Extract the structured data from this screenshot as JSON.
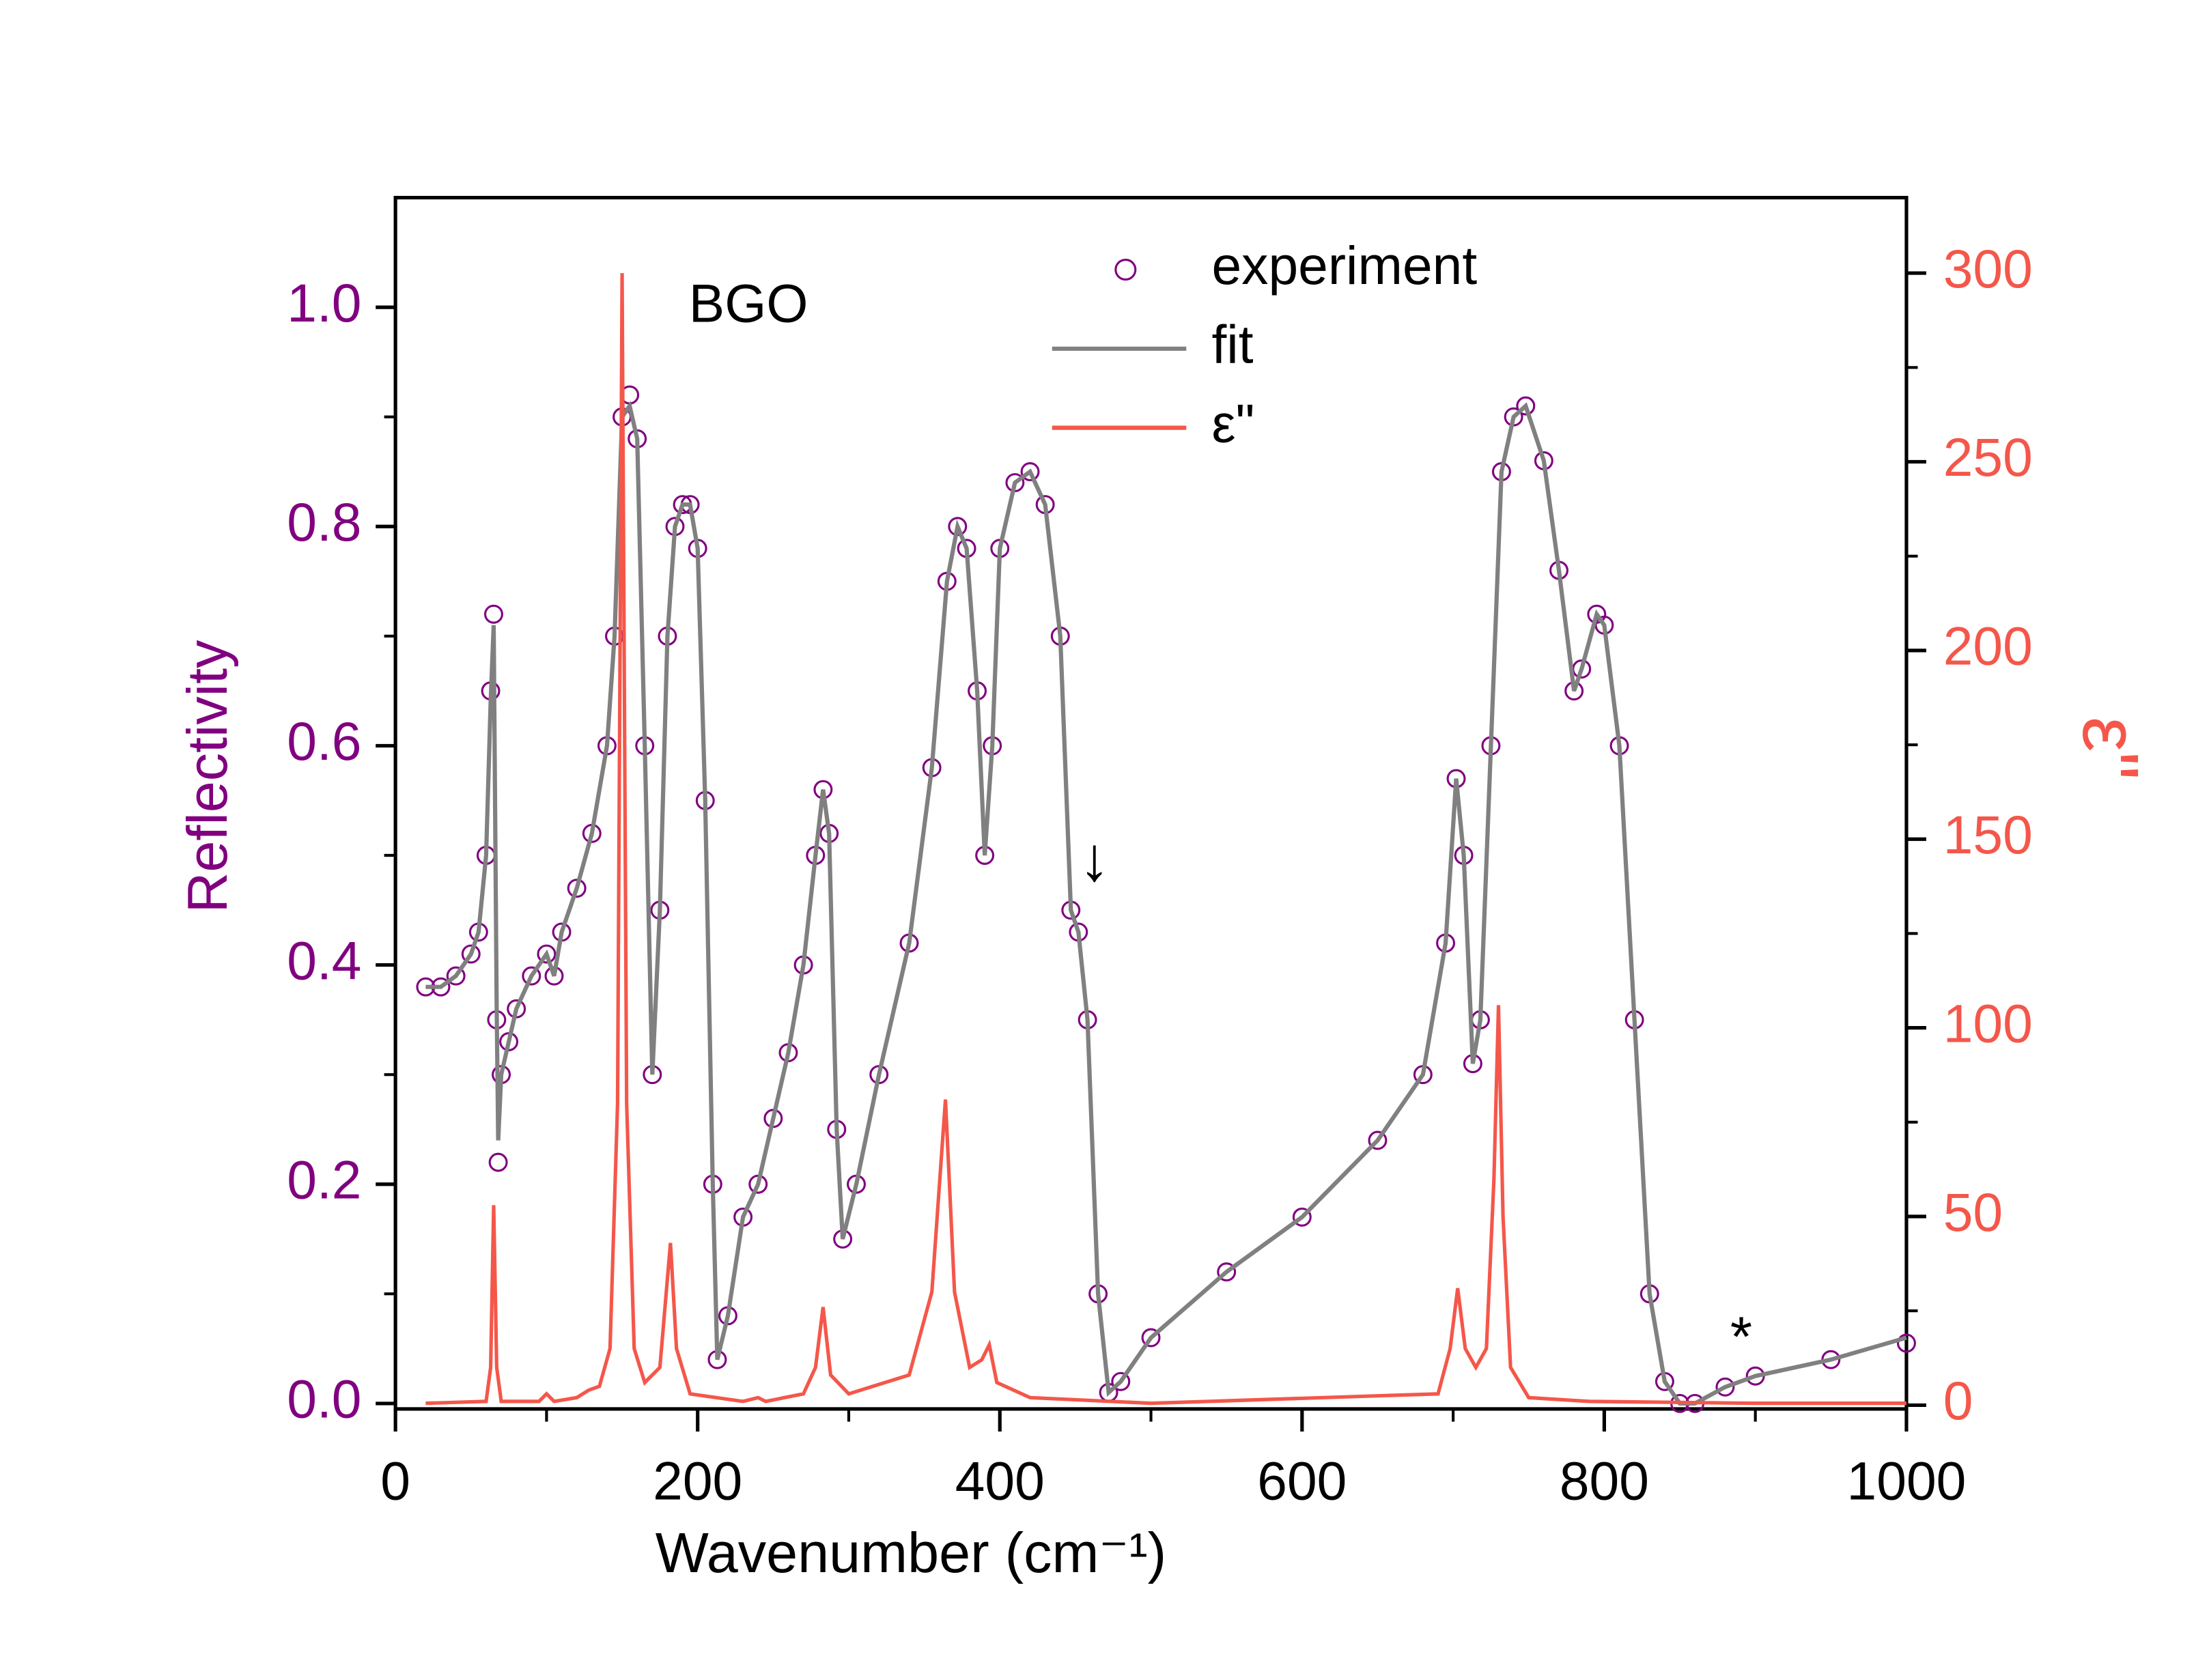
{
  "chart_data": {
    "type": "line",
    "x_label": "Wavenumber (cm⁻¹)",
    "y_label": "Reflectivity",
    "y2_label": "ε\"",
    "annotations": [
      "BGO",
      "↓",
      "*"
    ],
    "xlim": [
      0,
      1000
    ],
    "xticks": [
      0,
      200,
      400,
      600,
      800,
      1000
    ],
    "ylim": [
      -0.005,
      1.1
    ],
    "yticks": [
      {
        "value": 0,
        "label": "0.0"
      },
      0.2,
      0.4,
      0.6,
      0.8,
      {
        "value": 1,
        "label": "1.0"
      }
    ],
    "y2lim": [
      -1,
      320
    ],
    "y2ticks": [
      0,
      50,
      100,
      150,
      200,
      250,
      300
    ],
    "y_color": "#800080",
    "y2_color": "#f4574a",
    "series": [
      {
        "name": "experiment",
        "kind": "scatter",
        "color": "#800080",
        "x": [
          20,
          30,
          40,
          50,
          55,
          60,
          63,
          65,
          67,
          68,
          70,
          75,
          80,
          90,
          100,
          105,
          110,
          120,
          130,
          140,
          145,
          150,
          155,
          160,
          165,
          170,
          175,
          180,
          185,
          190,
          195,
          200,
          205,
          210,
          213,
          220,
          230,
          240,
          250,
          260,
          270,
          278,
          283,
          287,
          292,
          296,
          305,
          320,
          340,
          355,
          365,
          372,
          378,
          385,
          390,
          395,
          400,
          410,
          420,
          430,
          440,
          447,
          452,
          458,
          465,
          472,
          480,
          500,
          550,
          600,
          650,
          680,
          695,
          702,
          707,
          713,
          718,
          725,
          732,
          740,
          748,
          760,
          770,
          780,
          785,
          795,
          800,
          810,
          820,
          830,
          840,
          850,
          860,
          880,
          900,
          950,
          1000
        ],
        "values": [
          0.38,
          0.38,
          0.39,
          0.41,
          0.43,
          0.5,
          0.65,
          0.72,
          0.35,
          0.22,
          0.3,
          0.33,
          0.36,
          0.39,
          0.41,
          0.39,
          0.43,
          0.47,
          0.52,
          0.6,
          0.7,
          0.9,
          0.92,
          0.88,
          0.6,
          0.3,
          0.45,
          0.7,
          0.8,
          0.82,
          0.82,
          0.78,
          0.55,
          0.2,
          0.04,
          0.08,
          0.17,
          0.2,
          0.26,
          0.32,
          0.4,
          0.5,
          0.56,
          0.52,
          0.25,
          0.15,
          0.2,
          0.3,
          0.42,
          0.58,
          0.75,
          0.8,
          0.78,
          0.65,
          0.5,
          0.6,
          0.78,
          0.84,
          0.85,
          0.82,
          0.7,
          0.45,
          0.43,
          0.35,
          0.1,
          0.01,
          0.02,
          0.06,
          0.12,
          0.17,
          0.24,
          0.3,
          0.42,
          0.57,
          0.5,
          0.31,
          0.35,
          0.6,
          0.85,
          0.9,
          0.91,
          0.86,
          0.76,
          0.65,
          0.67,
          0.72,
          0.71,
          0.6,
          0.35,
          0.1,
          0.02,
          0,
          0,
          0.015,
          0.025,
          0.04,
          0.055
        ]
      },
      {
        "name": "fit",
        "kind": "line",
        "color": "#808080",
        "x": [
          20,
          30,
          40,
          50,
          55,
          60,
          63,
          65,
          67,
          68,
          70,
          75,
          80,
          90,
          100,
          105,
          110,
          120,
          130,
          140,
          145,
          150,
          155,
          160,
          165,
          170,
          175,
          180,
          185,
          190,
          195,
          200,
          205,
          210,
          213,
          220,
          230,
          240,
          250,
          260,
          270,
          278,
          283,
          287,
          292,
          296,
          305,
          320,
          340,
          355,
          365,
          372,
          378,
          385,
          390,
          395,
          400,
          410,
          420,
          430,
          440,
          447,
          452,
          458,
          465,
          472,
          480,
          500,
          550,
          600,
          650,
          680,
          695,
          702,
          707,
          713,
          718,
          725,
          732,
          740,
          748,
          760,
          770,
          780,
          785,
          795,
          800,
          810,
          820,
          830,
          840,
          850,
          860,
          880,
          900,
          950,
          1000
        ],
        "values": [
          0.38,
          0.38,
          0.39,
          0.41,
          0.43,
          0.5,
          0.64,
          0.71,
          0.36,
          0.24,
          0.3,
          0.33,
          0.36,
          0.39,
          0.41,
          0.39,
          0.43,
          0.47,
          0.52,
          0.6,
          0.7,
          0.9,
          0.91,
          0.88,
          0.6,
          0.3,
          0.45,
          0.7,
          0.8,
          0.82,
          0.82,
          0.78,
          0.55,
          0.2,
          0.04,
          0.08,
          0.17,
          0.2,
          0.26,
          0.32,
          0.4,
          0.5,
          0.56,
          0.52,
          0.25,
          0.15,
          0.2,
          0.3,
          0.42,
          0.58,
          0.75,
          0.8,
          0.78,
          0.65,
          0.5,
          0.6,
          0.78,
          0.84,
          0.85,
          0.82,
          0.7,
          0.45,
          0.43,
          0.35,
          0.1,
          0.01,
          0.02,
          0.06,
          0.12,
          0.17,
          0.24,
          0.3,
          0.42,
          0.57,
          0.5,
          0.31,
          0.35,
          0.6,
          0.85,
          0.9,
          0.91,
          0.86,
          0.76,
          0.65,
          0.67,
          0.72,
          0.71,
          0.6,
          0.35,
          0.1,
          0.02,
          0,
          0,
          0.015,
          0.025,
          0.04,
          0.06
        ]
      },
      {
        "name": "ε\"",
        "kind": "line",
        "axis": "y2",
        "color": "#f4574a",
        "x": [
          20,
          60,
          63,
          65,
          67,
          70,
          95,
          100,
          105,
          120,
          128,
          135,
          142,
          147,
          150,
          153,
          158,
          165,
          175,
          182,
          186,
          195,
          230,
          240,
          245,
          270,
          278,
          283,
          288,
          300,
          340,
          355,
          364,
          370,
          380,
          388,
          393,
          398,
          420,
          500,
          690,
          698,
          703,
          708,
          715,
          722,
          727,
          730,
          733,
          738,
          750,
          790,
          900,
          1000
        ],
        "values": [
          0.5,
          1,
          10,
          53,
          10,
          1,
          1,
          3,
          1,
          2,
          4,
          5,
          15,
          80,
          300,
          80,
          15,
          6,
          10,
          43,
          15,
          3,
          1,
          2,
          1,
          3,
          10,
          26,
          8,
          3,
          8,
          30,
          81,
          30,
          10,
          12,
          16,
          6,
          2,
          0.5,
          3,
          15,
          31,
          15,
          10,
          15,
          60,
          106,
          50,
          10,
          2,
          1,
          0.5,
          0.5
        ]
      }
    ]
  }
}
